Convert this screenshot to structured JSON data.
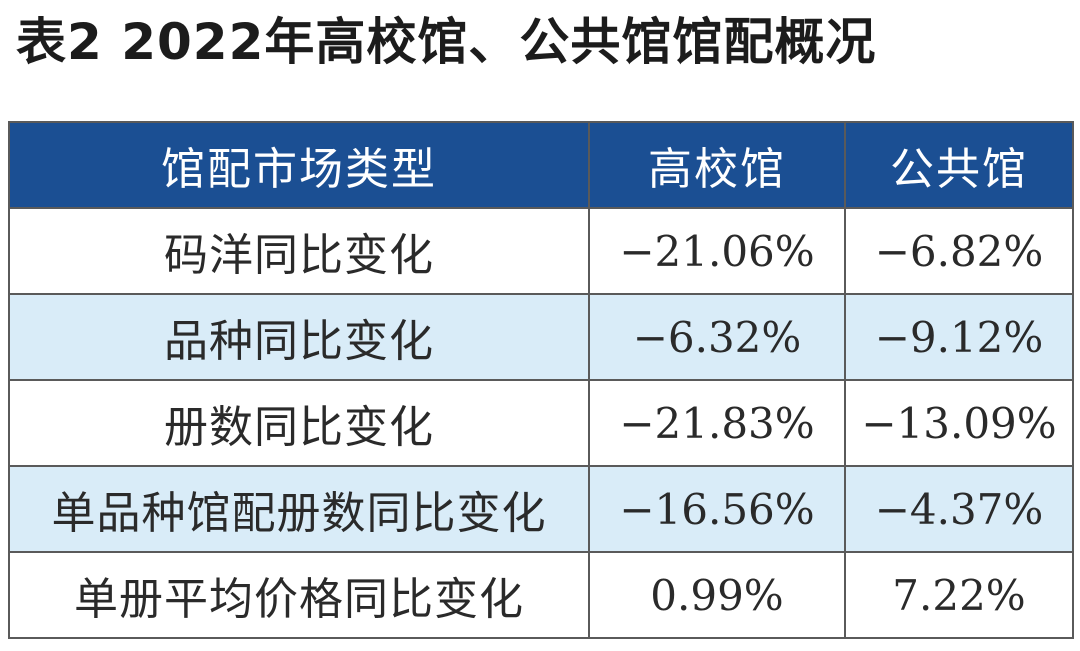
{
  "title": "表2  2022年高校馆、公共馆馆配概况",
  "table": {
    "headers": [
      "馆配市场类型",
      "高校馆",
      "公共馆"
    ],
    "rows": [
      {
        "label": "码洋同比变化",
        "university": "−21.06%",
        "public": "−6.82%"
      },
      {
        "label": "品种同比变化",
        "university": "−6.32%",
        "public": "−9.12%"
      },
      {
        "label": "册数同比变化",
        "university": "−21.83%",
        "public": "−13.09%"
      },
      {
        "label": "单品种馆配册数同比变化",
        "university": "−16.56%",
        "public": "−4.37%"
      },
      {
        "label": "单册平均价格同比变化",
        "university": "0.99%",
        "public": "7.22%"
      }
    ]
  },
  "colors": {
    "header_bg": "#1b4f93",
    "header_text": "#ffffff",
    "shaded_row_bg": "#d9ecf8",
    "border": "#5a5a5a"
  }
}
